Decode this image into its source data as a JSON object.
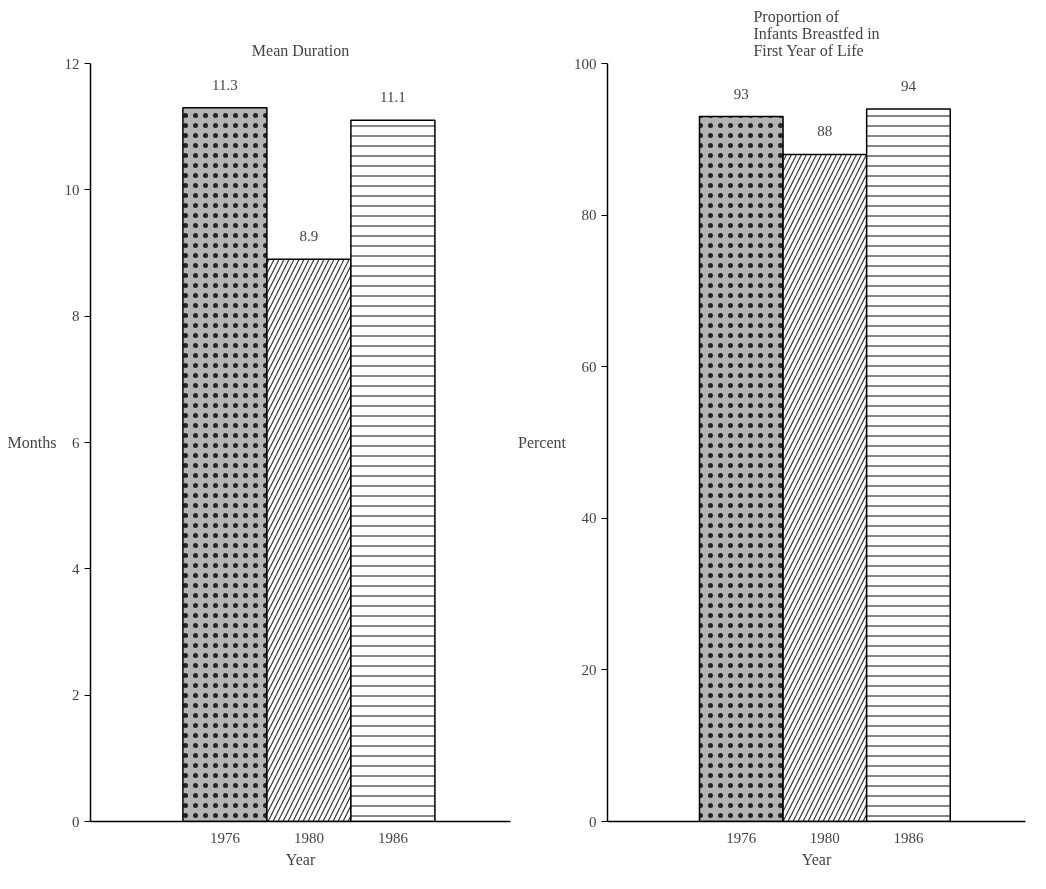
{
  "chart_data": [
    {
      "type": "bar",
      "title": "Mean Duration",
      "xlabel": "Year",
      "ylabel": "Months",
      "categories": [
        "1976",
        "1980",
        "1986"
      ],
      "values": [
        11.3,
        8.9,
        11.1
      ],
      "colors": [
        "#b4b4b4",
        "#ffffff",
        "#ffffff"
      ],
      "data_labels": true,
      "ylim": [
        0,
        12
      ],
      "yticks": [
        0,
        2,
        4,
        6,
        8,
        10,
        12
      ],
      "grid": false
    },
    {
      "type": "bar",
      "title": "Proportion of\nInfants Breastfed in\nFirst Year of Life",
      "xlabel": "Year",
      "ylabel": "Percent",
      "categories": [
        "1976",
        "1980",
        "1986"
      ],
      "values": [
        93,
        88,
        94
      ],
      "colors": [
        "#b4b4b4",
        "#ffffff",
        "#ffffff"
      ],
      "data_labels": true,
      "ylim": [
        0,
        100
      ],
      "yticks": [
        0,
        20,
        40,
        60,
        80,
        100
      ],
      "grid": false
    }
  ]
}
